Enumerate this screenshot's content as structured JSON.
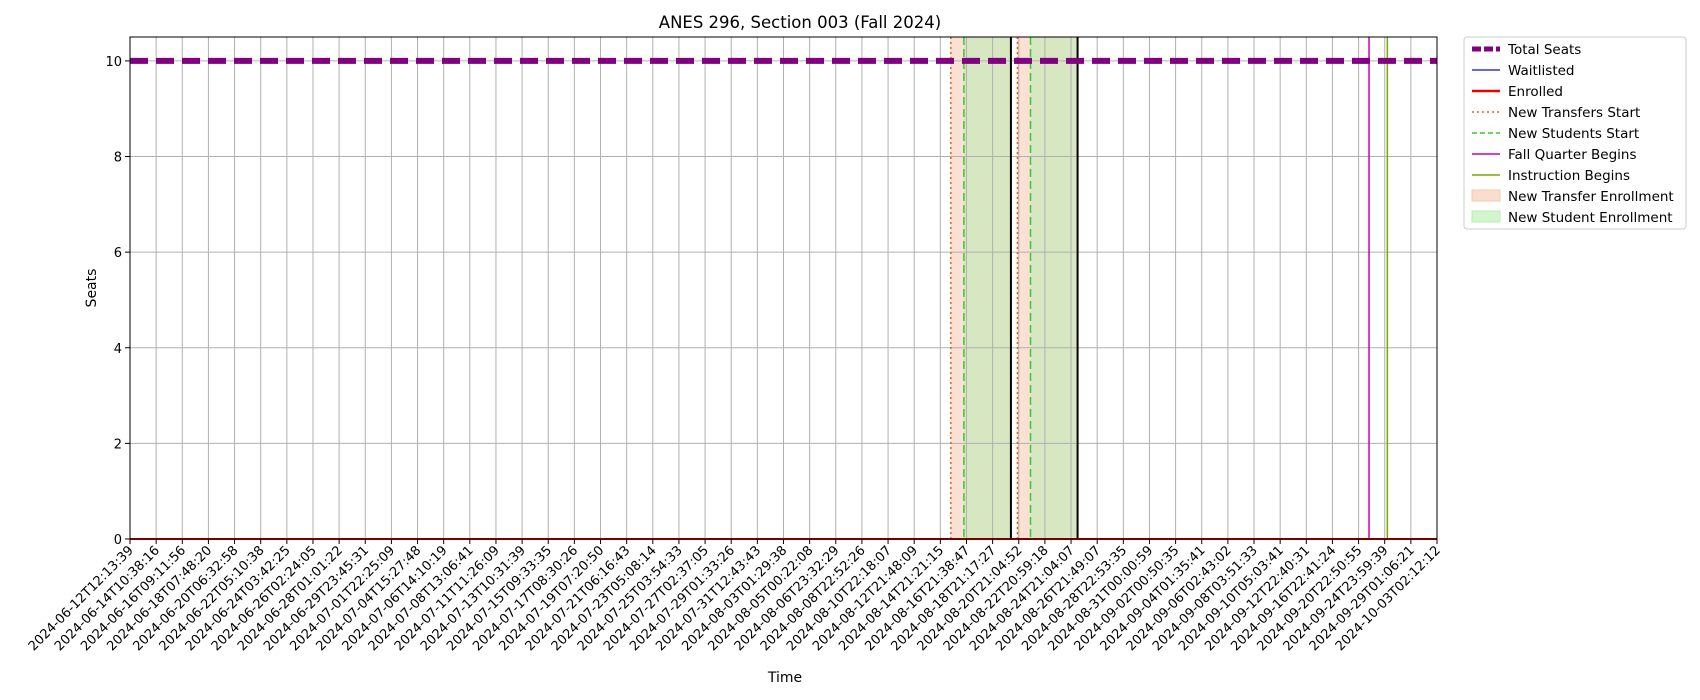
{
  "chart_data": {
    "type": "line",
    "title": "ANES 296, Section 003 (Fall 2024)",
    "xlabel": "Time",
    "ylabel": "Seats",
    "ylim": [
      0,
      10.5
    ],
    "xlim": [
      "2024-06-12T12:13:39",
      "2024-10-03T02:12:12"
    ],
    "y_ticks": [
      0,
      2,
      4,
      6,
      8,
      10
    ],
    "x_ticks": [
      "2024-06-12T12:13:39",
      "2024-06-14T10:38:16",
      "2024-06-16T09:11:56",
      "2024-06-18T07:48:20",
      "2024-06-20T06:32:58",
      "2024-06-22T05:10:38",
      "2024-06-24T03:42:25",
      "2024-06-26T02:24:05",
      "2024-06-28T01:01:22",
      "2024-06-29T23:45:31",
      "2024-07-01T22:25:09",
      "2024-07-04T15:27:48",
      "2024-07-06T14:10:19",
      "2024-07-08T13:06:41",
      "2024-07-11T11:26:09",
      "2024-07-13T10:31:39",
      "2024-07-15T09:33:35",
      "2024-07-17T08:30:26",
      "2024-07-19T07:20:50",
      "2024-07-21T06:16:43",
      "2024-07-23T05:08:14",
      "2024-07-25T03:54:33",
      "2024-07-27T02:37:05",
      "2024-07-29T01:33:26",
      "2024-07-31T12:43:43",
      "2024-08-03T01:29:38",
      "2024-08-05T00:22:08",
      "2024-08-06T23:32:29",
      "2024-08-08T22:52:26",
      "2024-08-10T22:18:07",
      "2024-08-12T21:48:09",
      "2024-08-14T21:21:15",
      "2024-08-16T21:38:47",
      "2024-08-18T21:17:27",
      "2024-08-20T21:04:52",
      "2024-08-22T20:59:18",
      "2024-08-24T21:04:07",
      "2024-08-26T21:49:07",
      "2024-08-28T22:53:35",
      "2024-08-31T00:00:59",
      "2024-09-02T00:50:35",
      "2024-09-04T01:35:41",
      "2024-09-06T02:43:02",
      "2024-09-08T03:51:33",
      "2024-09-10T05:03:41",
      "2024-09-12T22:40:31",
      "2024-09-16T22:41:24",
      "2024-09-20T22:50:55",
      "2024-09-24T23:59:39",
      "2024-09-29T01:06:21",
      "2024-10-03T02:12:12"
    ],
    "grid": true,
    "legend_placement": "outside-top-right",
    "series": [
      {
        "name": "Total Seats",
        "style": "dashed",
        "color": "#800080",
        "value": 10
      },
      {
        "name": "Waitlisted",
        "style": "solid",
        "color": "#3333dd",
        "value": 0
      },
      {
        "name": "Enrolled",
        "style": "solid",
        "color": "#ee0000",
        "value": 0
      }
    ],
    "markers": [
      {
        "name": "New Transfers Start",
        "style": "dotted",
        "color": "#ff5500",
        "legend": true,
        "x_index": 31.4
      },
      {
        "name": "New Transfers Start",
        "style": "dotted",
        "color": "#ff5500",
        "legend": false,
        "x_index": 33.95
      },
      {
        "name": "New Students Start",
        "style": "dashed",
        "color": "#33cc33",
        "legend": true,
        "x_index": 31.9
      },
      {
        "name": "New Students Start",
        "style": "dashed",
        "color": "#33cc33",
        "legend": false,
        "x_index": 34.45
      },
      {
        "name": "Fall Quarter Begins",
        "style": "solid",
        "color": "#cc00aa",
        "legend": true,
        "x_index": 47.4
      },
      {
        "name": "Instruction Begins",
        "style": "solid",
        "color": "#77aa00",
        "legend": true,
        "x_index": 48.1
      },
      {
        "name": "",
        "style": "solid",
        "color": "#000000",
        "legend": false,
        "x_index": 33.7
      },
      {
        "name": "",
        "style": "solid",
        "color": "#000000",
        "legend": false,
        "x_index": 36.25
      }
    ],
    "spans": [
      {
        "name": "New Transfer Enrollment",
        "color": "#f5c8b0",
        "x_index_start": 31.4,
        "x_index_end": 33.7
      },
      {
        "name": "New Transfer Enrollment",
        "color": "#f5c8b0",
        "x_index_start": 33.95,
        "x_index_end": 36.25
      },
      {
        "name": "New Student Enrollment",
        "color": "#b8ecb0",
        "x_index_start": 31.9,
        "x_index_end": 33.7
      },
      {
        "name": "New Student Enrollment",
        "color": "#b8ecb0",
        "x_index_start": 34.45,
        "x_index_end": 36.25
      }
    ],
    "legend": [
      {
        "label": "Total Seats",
        "kind": "line",
        "style": "dashed-thick",
        "color": "#800080"
      },
      {
        "label": "Waitlisted",
        "kind": "line",
        "style": "solid",
        "color": "#3333dd"
      },
      {
        "label": "Enrolled",
        "kind": "line",
        "style": "solid-thick",
        "color": "#ee0000"
      },
      {
        "label": "New Transfers Start",
        "kind": "line",
        "style": "dotted",
        "color": "#ff5500"
      },
      {
        "label": "New Students Start",
        "kind": "line",
        "style": "dashed",
        "color": "#33cc33"
      },
      {
        "label": "Fall Quarter Begins",
        "kind": "line",
        "style": "solid",
        "color": "#cc00aa"
      },
      {
        "label": "Instruction Begins",
        "kind": "line",
        "style": "solid",
        "color": "#77aa00"
      },
      {
        "label": "New Transfer Enrollment",
        "kind": "patch",
        "color": "#f5c8b0"
      },
      {
        "label": "New Student Enrollment",
        "kind": "patch",
        "color": "#b8ecb0"
      }
    ]
  }
}
